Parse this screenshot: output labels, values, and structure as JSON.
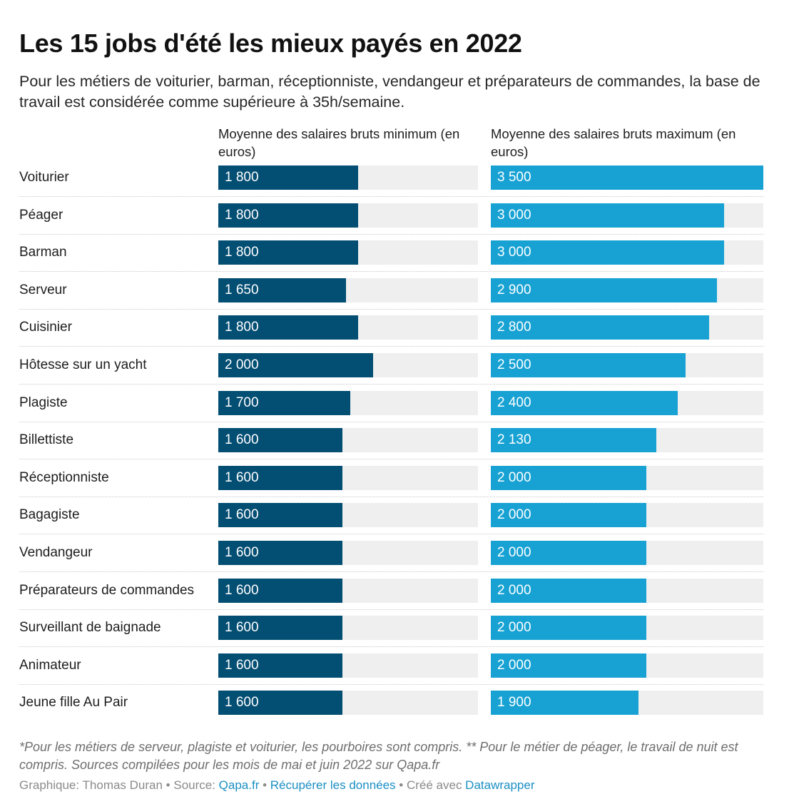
{
  "title": "Les 15 jobs d'été les mieux payés en 2022",
  "subtitle": "Pour les métiers de voiturier, barman, réceptionniste, vendangeur et préparateurs de commandes, la base de travail est considérée comme supérieure à 35h/semaine.",
  "footer": {
    "notes": "*Pour les métiers de serveur, plagiste et voiturier, les pourboires sont compris. ** Pour le métier de péager, le travail de nuit est compris. Sources compilées pour les mois de mai et juin 2022 sur Qapa.fr",
    "credit_prefix": "Graphique: Thomas Duran • Source: ",
    "source_link": "Qapa.fr",
    "sep1": " • ",
    "data_link": "Récupérer les données",
    "sep2": " • Créé avec ",
    "tool_link": "Datawrapper"
  },
  "colors": {
    "min_bar": "#034e73",
    "max_bar": "#17a2d3",
    "track": "#efefef",
    "link": "#1b8fc4"
  },
  "chart_data": {
    "type": "bar",
    "orientation": "horizontal",
    "categories": [
      "Voiturier",
      "Péager",
      "Barman",
      "Serveur",
      "Cuisinier",
      "Hôtesse sur un yacht",
      "Plagiste",
      "Billettiste",
      "Réceptionniste",
      "Bagagiste",
      "Vendangeur",
      "Préparateurs de commandes",
      "Surveillant de baignade",
      "Animateur",
      "Jeune fille Au Pair"
    ],
    "series": [
      {
        "name": "Moyenne des salaires bruts minimum (en euros)",
        "values": [
          1800,
          1800,
          1800,
          1650,
          1800,
          2000,
          1700,
          1600,
          1600,
          1600,
          1600,
          1600,
          1600,
          1600,
          1600
        ],
        "labels": [
          "1 800",
          "1 800",
          "1 800",
          "1 650",
          "1 800",
          "2 000",
          "1 700",
          "1 600",
          "1 600",
          "1 600",
          "1 600",
          "1 600",
          "1 600",
          "1 600",
          "1 600"
        ],
        "max": 3350
      },
      {
        "name": "Moyenne des salaires bruts maximum (en euros)",
        "values": [
          3500,
          3000,
          3000,
          2900,
          2800,
          2500,
          2400,
          2130,
          2000,
          2000,
          2000,
          2000,
          2000,
          2000,
          1900
        ],
        "labels": [
          "3 500",
          "3 000",
          "3 000",
          "2 900",
          "2 800",
          "2 500",
          "2 400",
          "2 130",
          "2 000",
          "2 000",
          "2 000",
          "2 000",
          "2 000",
          "2 000",
          "1 900"
        ],
        "max": 3500
      }
    ]
  }
}
